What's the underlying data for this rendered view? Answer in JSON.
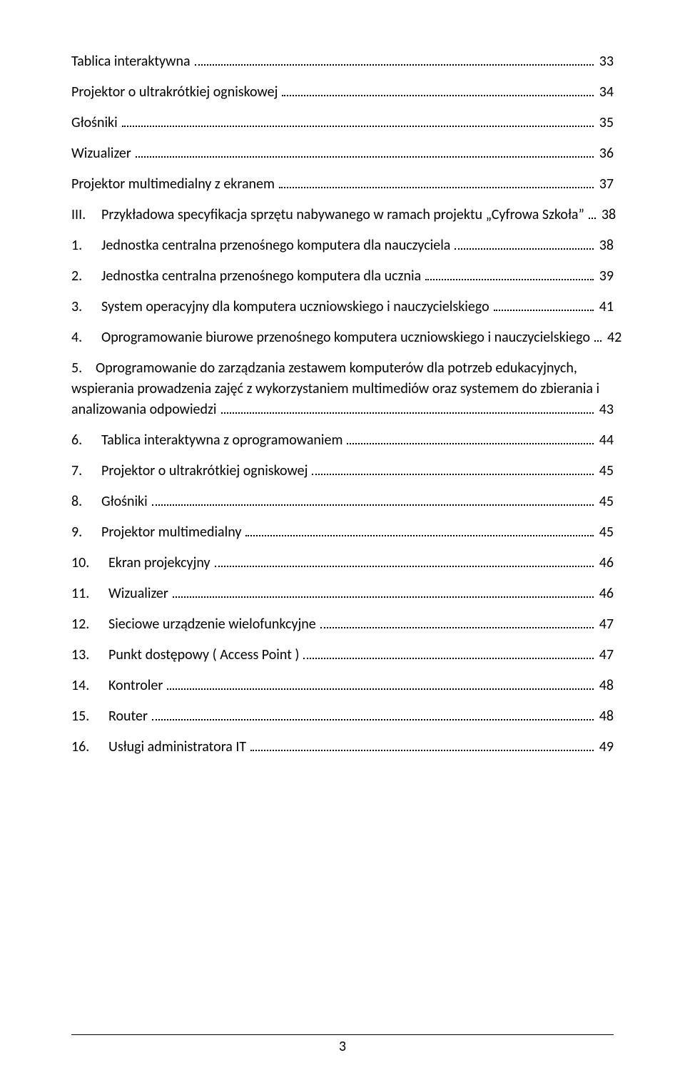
{
  "toc": [
    {
      "indent": "a",
      "marker": "",
      "text": "Tablica interaktywna",
      "page": "33"
    },
    {
      "indent": "a",
      "marker": "",
      "text": "Projektor o ultrakrótkiej ogniskowej",
      "page": "34"
    },
    {
      "indent": "a",
      "marker": "",
      "text": "Głośniki",
      "page": "35"
    },
    {
      "indent": "a",
      "marker": "",
      "text": "Wizualizer",
      "page": "36"
    },
    {
      "indent": "a",
      "marker": "",
      "text": "Projektor multimedialny z ekranem",
      "page": "37"
    },
    {
      "indent": "a",
      "marker": "III.",
      "text": "Przykładowa specyfikacja sprzętu nabywanego w ramach projektu „Cyfrowa Szkoła”",
      "page": "38"
    },
    {
      "indent": "a",
      "marker": "1.",
      "text": "Jednostka centralna przenośnego komputera dla nauczyciela",
      "page": "38"
    },
    {
      "indent": "a",
      "marker": "2.",
      "text": "Jednostka centralna przenośnego komputera dla ucznia",
      "page": "39"
    },
    {
      "indent": "a",
      "marker": "3.",
      "text": "System operacyjny dla komputera uczniowskiego i nauczycielskiego",
      "page": "41"
    },
    {
      "indent": "a",
      "marker": "4.",
      "text": "Oprogramowanie biurowe przenośnego komputera uczniowskiego i nauczycielskiego",
      "page": "42"
    },
    {
      "indent": "a",
      "marker": "5.",
      "lines": [
        "Oprogramowanie do zarządzania zestawem komputerów dla potrzeb edukacyjnych,",
        "wspierania prowadzenia zajęć z wykorzystaniem multimediów oraz systemem do zbierania i"
      ],
      "last": "analizowania odpowiedzi",
      "page": "43",
      "multi": true
    },
    {
      "indent": "a",
      "marker": "6.",
      "text": "Tablica interaktywna z oprogramowaniem",
      "page": "44"
    },
    {
      "indent": "a",
      "marker": "7.",
      "text": "Projektor o ultrakrótkiej ogniskowej",
      "page": "45"
    },
    {
      "indent": "a",
      "marker": "8.",
      "text": "Głośniki",
      "page": "45"
    },
    {
      "indent": "a",
      "marker": "9.",
      "text": "Projektor multimedialny",
      "page": "45"
    },
    {
      "indent": "a",
      "marker": "10.",
      "text": "Ekran projekcyjny",
      "page": "46",
      "wide": true
    },
    {
      "indent": "a",
      "marker": "11.",
      "text": "Wizualizer",
      "page": "46",
      "wide": true
    },
    {
      "indent": "a",
      "marker": "12.",
      "text": "Sieciowe urządzenie wielofunkcyjne",
      "page": "47",
      "wide": true
    },
    {
      "indent": "a",
      "marker": "13.",
      "text": "Punkt dostępowy ( Access Point )",
      "page": "47",
      "wide": true
    },
    {
      "indent": "a",
      "marker": "14.",
      "text": "Kontroler",
      "page": "48",
      "wide": true
    },
    {
      "indent": "a",
      "marker": "15.",
      "text": "Router",
      "page": "48",
      "wide": true
    },
    {
      "indent": "a",
      "marker": "16.",
      "text": "Usługi administratora IT",
      "page": "49",
      "wide": true
    }
  ],
  "pageNumber": "3"
}
